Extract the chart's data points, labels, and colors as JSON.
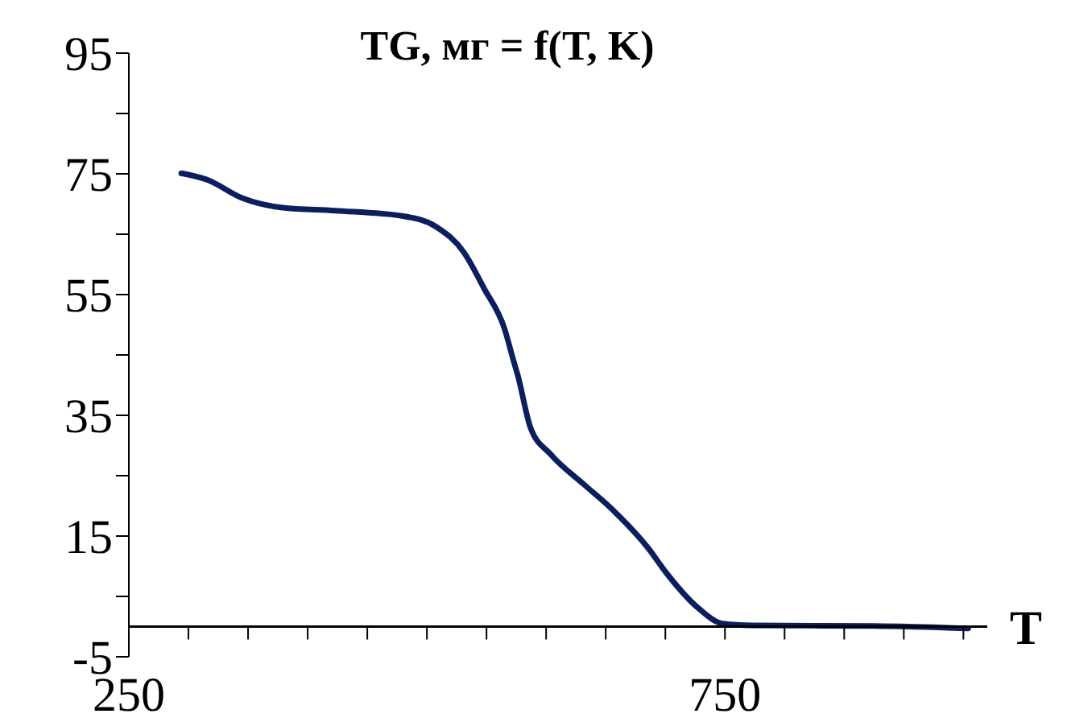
{
  "chart_data": {
    "type": "line",
    "title": "TG, мг = f(T, K)",
    "xlabel": "T",
    "x": [
      294,
      316,
      345,
      379,
      423,
      480,
      508,
      531,
      548,
      565,
      573,
      576,
      587,
      604,
      632,
      655,
      686,
      700,
      728,
      748,
      773,
      875,
      954
    ],
    "series": [
      {
        "color": "#0b1f5e",
        "values": [
          75.1,
          74,
          71,
          69.4,
          68.9,
          68,
          66.2,
          62,
          56,
          49.4,
          43.8,
          41.8,
          32.9,
          28.5,
          23.5,
          19.5,
          12.9,
          9.1,
          3,
          0.5,
          0.2,
          0.1,
          -0.3
        ]
      }
    ],
    "xlim": [
      250,
      970
    ],
    "xticks": [
      250,
      {
        "value": 300,
        "label": null
      },
      {
        "value": 350,
        "label": null
      },
      {
        "value": 400,
        "label": null
      },
      {
        "value": 450,
        "label": null
      },
      {
        "value": 500,
        "label": null
      },
      {
        "value": 550,
        "label": null
      },
      {
        "value": 600,
        "label": null
      },
      {
        "value": 650,
        "label": null
      },
      {
        "value": 700,
        "label": null
      },
      750,
      {
        "value": 800,
        "label": null
      },
      {
        "value": 850,
        "label": null
      },
      {
        "value": 900,
        "label": null
      },
      {
        "value": 950,
        "label": null
      }
    ],
    "ylim": [
      -5,
      95
    ],
    "yticks": [
      -5,
      {
        "value": 5,
        "label": null
      },
      15,
      {
        "value": 25,
        "label": null
      },
      35,
      {
        "value": 45,
        "label": null
      },
      55,
      {
        "value": 65,
        "label": null
      },
      75,
      {
        "value": 85,
        "label": null
      },
      95
    ],
    "grid": false,
    "legend": false,
    "marker": "none",
    "line_style": "solid"
  }
}
